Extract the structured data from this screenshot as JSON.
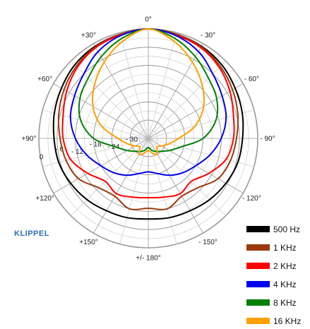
{
  "chart_data": {
    "type": "polar",
    "angle_labels": [
      {
        "angle": 0,
        "text": "0°"
      },
      {
        "angle": 30,
        "text": "- 30°"
      },
      {
        "angle": 60,
        "text": "- 60°"
      },
      {
        "angle": 90,
        "text": "- 90°"
      },
      {
        "angle": 120,
        "text": "- 120°"
      },
      {
        "angle": 150,
        "text": "- 150°"
      },
      {
        "angle": 180,
        "text": "+/- 180°"
      },
      {
        "angle": 210,
        "text": "+150°"
      },
      {
        "angle": 240,
        "text": "+120°"
      },
      {
        "angle": 270,
        "text": "+90°"
      },
      {
        "angle": 300,
        "text": "+60°"
      },
      {
        "angle": 330,
        "text": "+30°"
      }
    ],
    "radial_labels": [
      {
        "db": 0,
        "text": "0"
      },
      {
        "db": -6,
        "text": "- 6"
      },
      {
        "db": -12,
        "text": "- 12"
      },
      {
        "db": -18,
        "text": "- 18"
      },
      {
        "db": -24,
        "text": "- 24"
      },
      {
        "db": -30,
        "text": "- 30"
      }
    ],
    "r_range": [
      -36,
      0
    ],
    "grid": true,
    "legend_position": "bottom-right",
    "series": [
      {
        "name": "500 Hz",
        "color": "#000000",
        "angles": [
          0,
          15,
          30,
          45,
          60,
          75,
          90,
          105,
          120,
          135,
          150,
          165,
          180,
          195,
          210,
          225,
          240,
          255,
          270,
          285,
          300,
          315,
          330,
          345
        ],
        "values": [
          0,
          -0.5,
          -1,
          -1.8,
          -3,
          -4,
          -5,
          -5.5,
          -6.5,
          -7.5,
          -8.5,
          -9,
          -9.5,
          -9,
          -8.5,
          -7.5,
          -6.5,
          -5.5,
          -5,
          -4,
          -3,
          -1.8,
          -1,
          -0.5
        ]
      },
      {
        "name": "1 KHz",
        "color": "#9c3a0e",
        "angles": [
          0,
          15,
          30,
          45,
          60,
          75,
          90,
          105,
          120,
          135,
          150,
          165,
          180,
          195,
          210,
          225,
          240,
          255,
          270,
          285,
          300,
          315,
          330,
          345
        ],
        "values": [
          0,
          -0.5,
          -1.2,
          -2.5,
          -4,
          -5.5,
          -7,
          -8,
          -9.5,
          -13,
          -14,
          -12,
          -13,
          -12,
          -14,
          -13,
          -9.5,
          -8,
          -7,
          -5.5,
          -4,
          -2.5,
          -1.2,
          -0.5
        ]
      },
      {
        "name": "2 KHz",
        "color": "#ff0000",
        "angles": [
          0,
          15,
          30,
          45,
          60,
          75,
          90,
          105,
          120,
          135,
          150,
          165,
          180,
          195,
          210,
          225,
          240,
          255,
          270,
          285,
          300,
          315,
          330,
          345
        ],
        "values": [
          0,
          -0.8,
          -1.5,
          -3,
          -5,
          -7,
          -8,
          -9.5,
          -13,
          -16,
          -15,
          -16,
          -16.5,
          -16,
          -15,
          -16,
          -13,
          -9.5,
          -8,
          -7,
          -5,
          -3,
          -1.5,
          -0.8
        ]
      },
      {
        "name": "4 KHz",
        "color": "#0000ee",
        "angles": [
          0,
          15,
          30,
          45,
          60,
          75,
          90,
          105,
          120,
          135,
          150,
          165,
          180,
          195,
          210,
          225,
          240,
          255,
          270,
          285,
          300,
          315,
          330,
          345
        ],
        "values": [
          0,
          -1,
          -3,
          -6,
          -8,
          -9.5,
          -12,
          -15,
          -18,
          -20,
          -22,
          -24,
          -25,
          -24,
          -22,
          -20,
          -18,
          -15,
          -12,
          -9.5,
          -8,
          -6,
          -3,
          -1
        ]
      },
      {
        "name": "8 KHz",
        "color": "#008000",
        "angles": [
          0,
          15,
          30,
          45,
          60,
          75,
          90,
          105,
          120,
          135,
          150,
          165,
          180,
          195,
          210,
          225,
          240,
          255,
          270,
          285,
          300,
          315,
          330,
          345
        ],
        "values": [
          0,
          -2,
          -5,
          -8,
          -10,
          -13,
          -18,
          -25,
          -28,
          -30,
          -31,
          -32,
          -33,
          -32,
          -31,
          -30,
          -28,
          -25,
          -18,
          -13,
          -10,
          -8,
          -5,
          -2
        ]
      },
      {
        "name": "16 KHz",
        "color": "#ffa000",
        "angles": [
          0,
          15,
          30,
          45,
          60,
          75,
          90,
          105,
          120,
          135,
          150,
          165,
          180,
          195,
          210,
          225,
          240,
          255,
          270,
          285,
          300,
          315,
          330,
          345
        ],
        "values": [
          0,
          -3,
          -7,
          -11,
          -15,
          -20,
          -26,
          -29,
          -31,
          -32,
          -30,
          -31,
          -32,
          -31,
          -30,
          -32,
          -31,
          -29,
          -26,
          -20,
          -15,
          -11,
          -7,
          -3
        ]
      }
    ]
  },
  "logo": {
    "text": "KLIPPEL"
  }
}
